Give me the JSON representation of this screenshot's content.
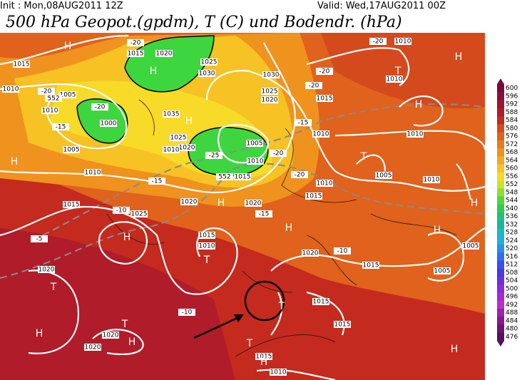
{
  "header": {
    "init": "Init : Mon,08AUG2011  12Z",
    "valid": "Valid: Wed,17AUG2011  00Z",
    "title": "500 hPa Geopot.(gpdm), T (C) und Bodendr. (hPa)"
  },
  "map_labels": [
    "H",
    "1015",
    "1010",
    "-20",
    "1005",
    "552",
    "1010",
    "-15",
    "1000",
    "-20",
    "1005",
    "1010",
    "H",
    "1015",
    "-10",
    "1025",
    "H",
    "-5",
    "1020",
    "T",
    "H",
    "T",
    "1020",
    "H",
    "1020",
    "-10",
    "-20",
    "1015",
    "1020",
    "H",
    "1025",
    "1030",
    "1035",
    "H",
    "1025",
    "1020",
    "1010",
    "-25",
    "1005",
    "1010",
    "552",
    "1015",
    "-15",
    "1020",
    "H",
    "1020",
    "-15",
    "1015",
    "1010",
    "T",
    "H",
    "1020",
    "-10",
    "1015",
    "1030",
    "1025",
    "1020",
    "-20",
    "-20",
    "1015",
    "1010",
    "-15",
    "-20",
    "-20",
    "1010",
    "1015",
    "T",
    "1005",
    "1010",
    "H",
    "1010",
    "H",
    "-20",
    "1010",
    "T",
    "1010",
    "H",
    "1005",
    "1005",
    "H",
    "1015",
    "1015",
    "T",
    "T",
    "1015",
    "H",
    "1010",
    "H"
  ],
  "colorbar": {
    "labels": [
      600,
      596,
      592,
      588,
      584,
      580,
      576,
      572,
      568,
      564,
      560,
      556,
      552,
      548,
      544,
      540,
      536,
      532,
      528,
      524,
      520,
      516,
      512,
      508,
      504,
      500,
      496,
      492,
      488,
      484,
      480,
      476
    ],
    "colors": [
      "#7a0a3a",
      "#8c0f3a",
      "#9e1434",
      "#b01c2a",
      "#c42a1e",
      "#d44a1c",
      "#e0621c",
      "#ea7a1e",
      "#f0921e",
      "#f4aa20",
      "#f6c224",
      "#f8da28",
      "#c8e62a",
      "#8ee030",
      "#4ed83a",
      "#30cc50",
      "#22c07a",
      "#1cb4a4",
      "#18b8c8",
      "#20b0e0",
      "#2a90e8",
      "#3070ea",
      "#3a50ea",
      "#4a38e6",
      "#6a30e0",
      "#8a2ad8",
      "#a62ad0",
      "#b830c4",
      "#a020a8",
      "#86188c",
      "#6c1472",
      "#561060"
    ]
  }
}
